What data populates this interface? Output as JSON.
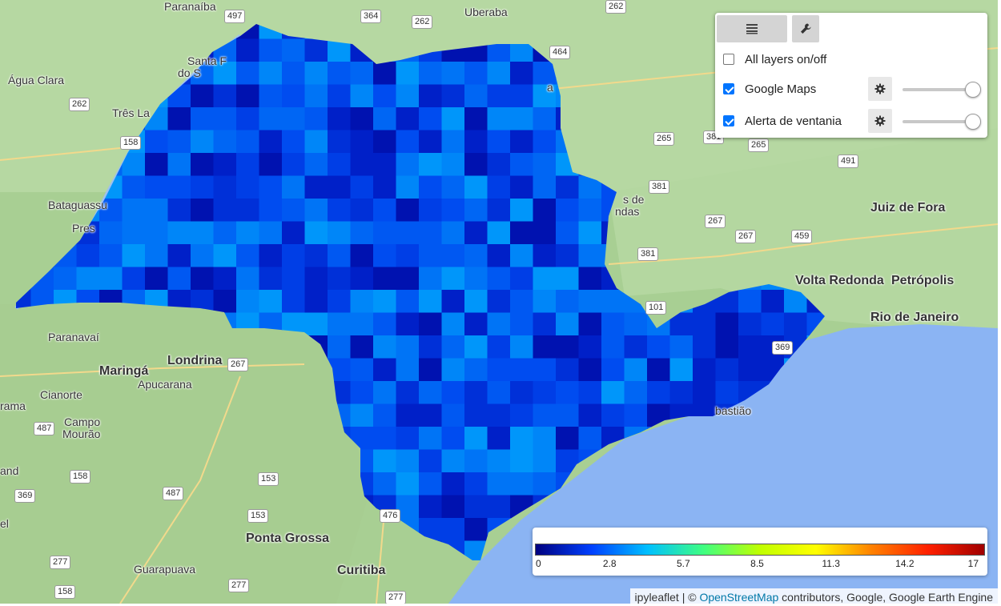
{
  "map": {
    "place_labels": [
      {
        "text": "Paranaíba",
        "cls": "city"
      },
      {
        "text": "Uberaba",
        "cls": "city"
      },
      {
        "text": "Água Clara",
        "cls": "city"
      },
      {
        "text": "Três La",
        "cls": "city"
      },
      {
        "text": "Santa F",
        "cls": "city"
      },
      {
        "text": "do S",
        "cls": "city"
      },
      {
        "text": "Bataguassu",
        "cls": "city"
      },
      {
        "text": "Pres",
        "cls": "city"
      },
      {
        "text": "Paranavaí",
        "cls": "city"
      },
      {
        "text": "Maringá",
        "cls": "big"
      },
      {
        "text": "Londrina",
        "cls": "big"
      },
      {
        "text": "Apucarana",
        "cls": "city"
      },
      {
        "text": "Cianorte",
        "cls": "city"
      },
      {
        "text": "rama",
        "cls": "city"
      },
      {
        "text": "Campo",
        "cls": "city"
      },
      {
        "text": "Mourão",
        "cls": "city"
      },
      {
        "text": "and",
        "cls": "city"
      },
      {
        "text": "el",
        "cls": "city"
      },
      {
        "text": "Ponta Grossa",
        "cls": "big"
      },
      {
        "text": "Guarapuava",
        "cls": "city"
      },
      {
        "text": "Curitiba",
        "cls": "big"
      },
      {
        "text": "Juiz de Fora",
        "cls": "big"
      },
      {
        "text": "Volta Redonda",
        "cls": "big"
      },
      {
        "text": "Petrópolis",
        "cls": "big"
      },
      {
        "text": "Rio de Janeiro",
        "cls": "big"
      },
      {
        "text": "bastião",
        "cls": "city"
      },
      {
        "text": "s de",
        "cls": "city"
      },
      {
        "text": "ndas",
        "cls": "city"
      },
      {
        "text": "a",
        "cls": "city"
      }
    ],
    "road_shields": [
      "497",
      "364",
      "262",
      "262",
      "464",
      "262",
      "158",
      "265",
      "381",
      "265",
      "491",
      "381",
      "267",
      "267",
      "459",
      "381",
      "101",
      "369",
      "267",
      "487",
      "158",
      "153",
      "487",
      "369",
      "153",
      "476",
      "277",
      "277",
      "277",
      "158"
    ]
  },
  "layers_control": {
    "tab_layers_icon": "layers-list-icon",
    "tab_tools_icon": "wrench-icon",
    "all_layers_label": "All layers on/off",
    "all_layers_checked": false,
    "layers": [
      {
        "name": "Google Maps",
        "checked": true,
        "opacity": 1.0
      },
      {
        "name": "Alerta de ventania",
        "checked": true,
        "opacity": 1.0
      }
    ]
  },
  "legend": {
    "ticks": [
      "0",
      "2.8",
      "5.7",
      "8.5",
      "11.3",
      "14.2",
      "17"
    ],
    "min": 0,
    "max": 17,
    "colors": [
      "#00007f",
      "#0040ff",
      "#00c0ff",
      "#40ff80",
      "#c0ff00",
      "#ffff00",
      "#ff8000",
      "#ff2000",
      "#a00000"
    ]
  },
  "attribution": {
    "prefix": "ipyleaflet | © ",
    "link": "OpenStreetMap",
    "suffix": " contributors, Google, Google Earth Engine"
  }
}
